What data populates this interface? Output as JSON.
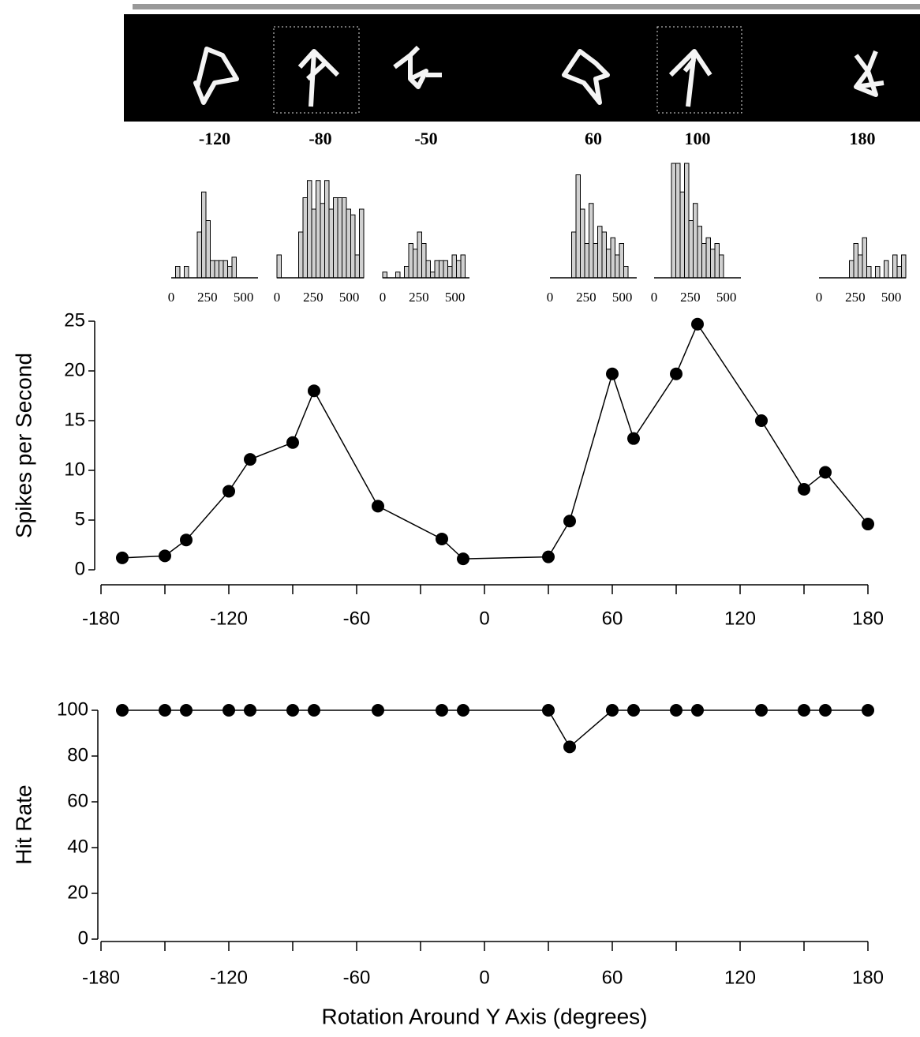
{
  "chart_data": [
    {
      "type": "psth",
      "bins": [
        0,
        30,
        60,
        90,
        120,
        150,
        180,
        210,
        240,
        270,
        300,
        330,
        360,
        390,
        420,
        450,
        480,
        510,
        540,
        570,
        600
      ],
      "xlim": [
        0,
        600
      ],
      "xticks": [
        0,
        250,
        500
      ],
      "ylim": [
        0,
        100
      ],
      "color": "#d0d0d0",
      "panels": [
        {
          "label": -120,
          "values": [
            0,
            10,
            0,
            10,
            0,
            0,
            40,
            75,
            50,
            15,
            15,
            15,
            15,
            10,
            18,
            0,
            0,
            0,
            0,
            0
          ]
        },
        {
          "label": -80,
          "values": [
            20,
            0,
            0,
            0,
            0,
            40,
            70,
            85,
            60,
            85,
            65,
            85,
            60,
            70,
            70,
            70,
            60,
            55,
            20,
            60
          ]
        },
        {
          "label": -50,
          "values": [
            5,
            0,
            0,
            5,
            0,
            10,
            30,
            25,
            40,
            30,
            15,
            5,
            15,
            15,
            15,
            10,
            20,
            15,
            20,
            0
          ]
        },
        {
          "label": 60,
          "values": [
            0,
            0,
            0,
            0,
            0,
            40,
            90,
            60,
            30,
            65,
            30,
            45,
            40,
            25,
            35,
            20,
            30,
            10,
            0,
            0
          ]
        },
        {
          "label": 100,
          "values": [
            0,
            0,
            0,
            0,
            100,
            100,
            75,
            100,
            50,
            65,
            45,
            30,
            35,
            25,
            30,
            20,
            0,
            0,
            0,
            0
          ]
        },
        {
          "label": 180,
          "values": [
            0,
            0,
            0,
            0,
            0,
            0,
            0,
            15,
            30,
            20,
            35,
            10,
            0,
            10,
            0,
            15,
            0,
            20,
            10,
            20
          ]
        }
      ]
    },
    {
      "type": "line",
      "y_label": "Spikes per Second",
      "color": "#000000",
      "x": [
        -170,
        -150,
        -140,
        -120,
        -110,
        -90,
        -80,
        -50,
        -20,
        -10,
        30,
        40,
        60,
        70,
        90,
        100,
        130,
        150,
        160,
        180
      ],
      "values": [
        1.2,
        1.4,
        3,
        7.9,
        11.1,
        12.8,
        18,
        6.4,
        3.1,
        1.1,
        1.3,
        4.9,
        19.7,
        13.2,
        19.7,
        24.7,
        15,
        8.1,
        9.8,
        4.6
      ],
      "xlim": [
        -180,
        180
      ],
      "xticks": [
        -180,
        -120,
        -60,
        0,
        60,
        120,
        180
      ],
      "ylim": [
        0,
        25
      ],
      "yticks": [
        0,
        5,
        10,
        15,
        20,
        25
      ]
    },
    {
      "type": "line",
      "y_label": "Hit Rate",
      "x_label": "Rotation Around Y Axis (degrees)",
      "color": "#000000",
      "x": [
        -170,
        -150,
        -140,
        -120,
        -110,
        -90,
        -80,
        -50,
        -20,
        -10,
        30,
        40,
        60,
        70,
        90,
        100,
        130,
        150,
        160,
        180
      ],
      "values": [
        100,
        100,
        100,
        100,
        100,
        100,
        100,
        100,
        100,
        100,
        100,
        84,
        100,
        100,
        100,
        100,
        100,
        100,
        100,
        100
      ],
      "xlim": [
        -180,
        180
      ],
      "xticks": [
        -180,
        -120,
        -60,
        0,
        60,
        120,
        180
      ],
      "ylim": [
        0,
        100
      ],
      "yticks": [
        0,
        20,
        40,
        60,
        80,
        100
      ]
    }
  ]
}
